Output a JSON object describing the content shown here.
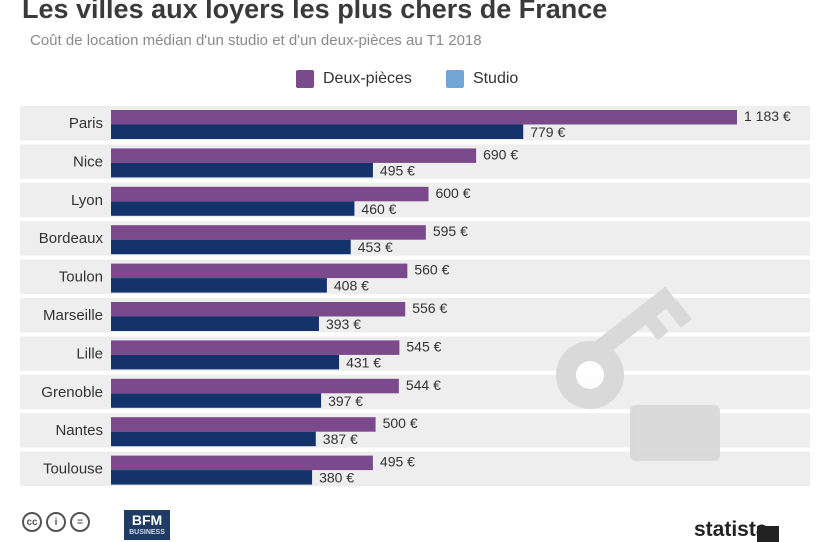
{
  "title": "Les villes aux loyers les plus chers de France",
  "subtitle": "Coût de location médian d'un studio et d'un deux-pièces au T1 2018",
  "legend": [
    {
      "label": "Deux-pièces",
      "color": "#7b4a8c"
    },
    {
      "label": "Studio",
      "color": "#74a5d8"
    }
  ],
  "chart_data": {
    "type": "bar",
    "orientation": "horizontal",
    "title": "Les villes aux loyers les plus chers de France",
    "subtitle": "Coût de location médian d'un studio et d'un deux-pièces au T1 2018",
    "unit": "€",
    "xlim": [
      0,
      1200
    ],
    "grid": false,
    "legend_position": "top",
    "categories": [
      "Paris",
      "Nice",
      "Lyon",
      "Bordeaux",
      "Toulon",
      "Marseille",
      "Lille",
      "Grenoble",
      "Nantes",
      "Toulouse"
    ],
    "series": [
      {
        "name": "Deux-pièces",
        "color": "#7b4a8c",
        "values": [
          1183,
          690,
          600,
          595,
          560,
          556,
          545,
          544,
          500,
          495
        ],
        "labels": [
          "1 183 €",
          "690 €",
          "600 €",
          "595 €",
          "560 €",
          "556 €",
          "545 €",
          "544 €",
          "500 €",
          "495 €"
        ]
      },
      {
        "name": "Studio",
        "color": "#14336b",
        "values": [
          779,
          495,
          460,
          453,
          408,
          393,
          431,
          397,
          387,
          380
        ],
        "labels": [
          "779 €",
          "495 €",
          "460 €",
          "453 €",
          "408 €",
          "393 €",
          "431 €",
          "397 €",
          "387 €",
          "380 €"
        ]
      }
    ]
  },
  "footer": {
    "cc_icons": [
      "cc",
      "i",
      "="
    ],
    "bfm": "BFM",
    "bfm_sub": "BUSINESS",
    "statista": "statista"
  },
  "colors": {
    "row_stripe": "#eeeeee",
    "key_watermark": "#d7d7d7"
  }
}
